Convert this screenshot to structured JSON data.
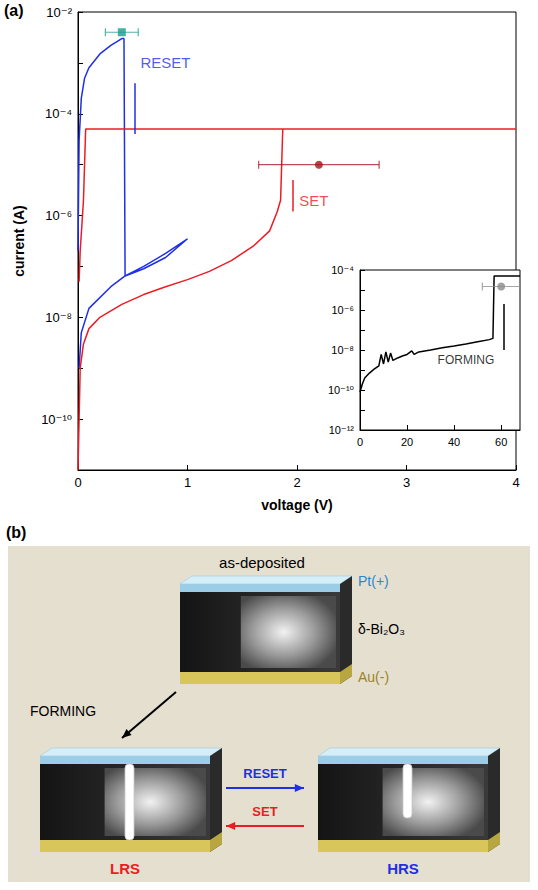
{
  "chart_data": [
    {
      "type": "line",
      "title": "(a)",
      "x_label": "voltage (V)",
      "y_label": "current (A)",
      "log": "y",
      "xlim": [
        0,
        4
      ],
      "xticks": [
        0,
        1,
        2,
        3,
        4
      ],
      "ylim": [
        1e-11,
        0.01
      ],
      "yticks": [
        {
          "value": 1e-10,
          "label": "10⁻¹⁰"
        },
        {
          "value": 1e-08,
          "label": "10⁻⁸"
        },
        {
          "value": 1e-06,
          "label": "10⁻⁶"
        },
        {
          "value": 0.0001,
          "label": "10⁻⁴"
        },
        {
          "value": 0.01,
          "label": "10⁻²"
        }
      ],
      "series": [
        {
          "type": "line",
          "color": "#1f2fe6",
          "x": [
            0,
            0.01,
            0.03,
            0.06,
            0.1,
            0.2,
            0.3,
            0.4,
            0.42,
            0.43,
            0.6,
            0.8,
            1.0,
            0.8,
            0.6,
            0.43,
            0.3,
            0.1,
            0.03,
            0.01
          ],
          "values": [
            2e-07,
            3e-05,
            0.0002,
            0.0005,
            0.0008,
            0.0015,
            0.0022,
            0.003,
            0.003,
            6.5e-08,
            1e-07,
            1.8e-07,
            3.5e-07,
            1.5e-07,
            9e-08,
            6.5e-08,
            4e-08,
            1.5e-08,
            5e-09,
            1e-09
          ]
        },
        {
          "type": "line",
          "color": "#ed1c24",
          "x": [
            0,
            0.02,
            0.05,
            0.1,
            0.2,
            0.4,
            0.6,
            0.8,
            1.0,
            1.2,
            1.4,
            1.6,
            1.75,
            1.82,
            1.85,
            1.87,
            4.0,
            0.07,
            0.05,
            0.02,
            0.01
          ],
          "values": [
            1e-11,
            1e-09,
            3e-09,
            6e-09,
            1e-08,
            1.8e-08,
            2.8e-08,
            4e-08,
            5.5e-08,
            8e-08,
            1.3e-07,
            2.5e-07,
            5e-07,
            1.2e-06,
            2e-06,
            5e-05,
            5e-05,
            5e-05,
            2e-06,
            2e-07,
            5e-08
          ]
        },
        {
          "type": "scatter",
          "marker": "square",
          "color": "#1a9c8c",
          "x": [
            0.4
          ],
          "values": [
            0.004
          ],
          "x_error": [
            0.15
          ]
        },
        {
          "type": "scatter",
          "marker": "circle",
          "color": "#a6111b",
          "x": [
            2.2
          ],
          "values": [
            1e-05
          ],
          "x_error": [
            0.55
          ]
        }
      ],
      "annotations": [
        {
          "text": "RESET",
          "color": "#1f2fe6"
        },
        {
          "text": "SET",
          "color": "#ed1c24"
        }
      ]
    },
    {
      "type": "line",
      "log": "y",
      "xlim": [
        0,
        68
      ],
      "xticks": [
        0,
        20,
        40,
        60
      ],
      "ylim": [
        1e-12,
        0.0001
      ],
      "yticks": [
        {
          "value": 1e-12,
          "label": "10⁻¹²"
        },
        {
          "value": 1e-10,
          "label": "10⁻¹⁰"
        },
        {
          "value": 1e-08,
          "label": "10⁻⁸"
        },
        {
          "value": 1e-06,
          "label": "10⁻⁶"
        },
        {
          "value": 0.0001,
          "label": "10⁻⁴"
        }
      ],
      "series": [
        {
          "type": "line",
          "color": "#000000",
          "x": [
            0,
            1,
            2,
            4,
            6,
            8,
            9,
            10,
            11,
            12,
            13,
            14,
            16,
            18,
            20,
            22,
            23,
            25,
            30,
            35,
            40,
            45,
            50,
            55,
            56.5,
            57,
            68
          ],
          "values": [
            8e-11,
            2e-10,
            4e-10,
            7e-10,
            1.1e-09,
            1.6e-09,
            6e-09,
            2e-09,
            8e-09,
            2.5e-09,
            7e-09,
            3e-09,
            4e-09,
            5e-09,
            6e-09,
            9e-09,
            6e-09,
            8e-09,
            1e-08,
            1.3e-08,
            1.6e-08,
            2e-08,
            2.6e-08,
            3.3e-08,
            3.8e-08,
            5e-05,
            5e-05
          ]
        },
        {
          "type": "scatter",
          "marker": "circle",
          "color": "#8a8a8a",
          "x": [
            60
          ],
          "values": [
            1.5e-05
          ],
          "x_error": [
            8
          ]
        }
      ],
      "annotations": [
        {
          "text": "FORMING",
          "color": "#000000"
        }
      ]
    }
  ],
  "diagram": {
    "label": "(b)",
    "initial_state": "as-deposited",
    "layers": [
      {
        "text": "Pt(+)",
        "color": "#2f86c8"
      },
      {
        "text": "δ-Bi₂O₃",
        "color": "#000000"
      },
      {
        "text": "Au(-)",
        "color": "#9a8428"
      }
    ],
    "states": [
      {
        "label": "LRS",
        "color": "#ed1c24"
      },
      {
        "label": "HRS",
        "color": "#1f2fe6"
      }
    ],
    "transitions": [
      {
        "label": "FORMING",
        "color": "#000000"
      },
      {
        "label": "RESET",
        "color": "#1f2fe6"
      },
      {
        "label": "SET",
        "color": "#ed1c24"
      }
    ]
  }
}
